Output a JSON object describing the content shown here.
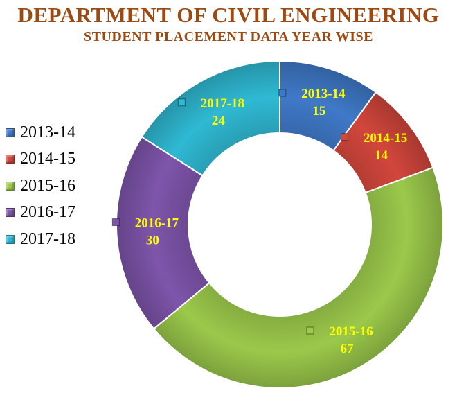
{
  "header": {
    "title": "DEPARTMENT OF CIVIL ENGINEERING",
    "subtitle": "STUDENT PLACEMENT DATA YEAR WISE"
  },
  "chart_data": {
    "type": "pie",
    "variant": "doughnut",
    "title": "DEPARTMENT OF CIVIL ENGINEERING",
    "subtitle": "STUDENT PLACEMENT DATA YEAR WISE",
    "categories": [
      "2013-14",
      "2014-15",
      "2015-16",
      "2016-17",
      "2017-18"
    ],
    "values": [
      15,
      14,
      67,
      30,
      24
    ],
    "colors": [
      "#3f79c8",
      "#d2463c",
      "#9bc94b",
      "#7e55ab",
      "#2fb9d3"
    ],
    "data_label_color": "#ffff00",
    "legend_position": "left",
    "start_angle": "top, clockwise"
  }
}
